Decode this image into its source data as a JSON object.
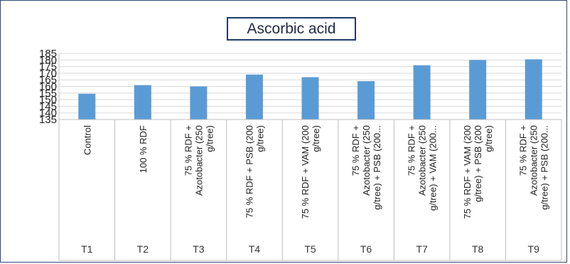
{
  "chart_data": {
    "type": "bar",
    "title": "Ascorbic acid",
    "xlabel": "",
    "ylabel": "",
    "ylim": [
      135,
      185
    ],
    "yticks": [
      135,
      140,
      145,
      150,
      155,
      160,
      165,
      170,
      175,
      180,
      185
    ],
    "grid": true,
    "legend": "none",
    "bar_color": "#5b9bd5",
    "categories": [
      "Control",
      "100 % RDF",
      "75 % RDF + Azotobacter (250 g/tree)",
      "75 % RDF + PSB (200 g/tree)",
      "75 % RDF + VAM (200 g/tree)",
      "75 % RDF + Azotobacter (250 g/tree) + PSB (200...",
      "75 % RDF + Azotobacter (250 g/tree) + VAM (200...",
      "75 % RDF + VAM (200 g/tree) + PSB (200 g/tree)",
      "75 % RDF + Azotobacter (250 g/tree) + PSB (200..."
    ],
    "category_lines": [
      [
        "Control"
      ],
      [
        "100 % RDF"
      ],
      [
        "75 % RDF +",
        "Azotobacter (250",
        "g/tree)"
      ],
      [
        "75 % RDF + PSB (200",
        "g/tree)"
      ],
      [
        "75 % RDF + VAM (200",
        "g/tree)"
      ],
      [
        "75 % RDF +",
        "Azotobacter (250",
        "g/tree) + PSB (200..."
      ],
      [
        "75 % RDF +",
        "Azotobacter (250",
        "g/tree) + VAM (200..."
      ],
      [
        "75 % RDF + VAM (200",
        "g/tree) + PSB (200",
        "g/tree)"
      ],
      [
        "75 % RDF +",
        "Azotobacter (250",
        "g/tree) + PSB (200..."
      ]
    ],
    "treatments": [
      "T1",
      "T2",
      "T3",
      "T4",
      "T5",
      "T6",
      "T7",
      "T8",
      "T9"
    ],
    "values": [
      154.5,
      161,
      160,
      169,
      167,
      164,
      176,
      180,
      180.5
    ]
  }
}
